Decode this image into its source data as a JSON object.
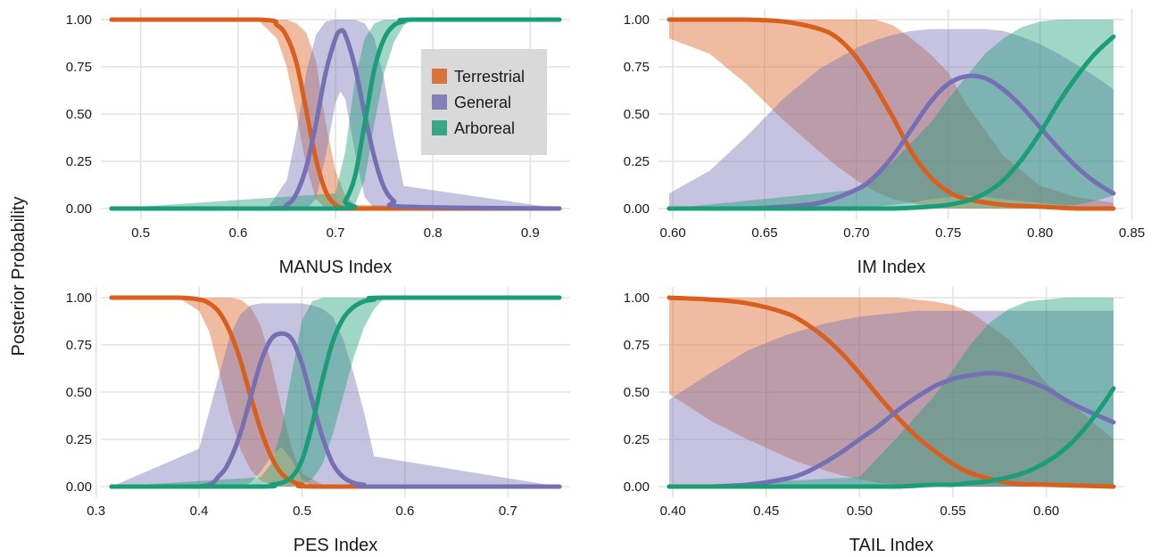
{
  "figure": {
    "ylabel": "Posterior Probability",
    "colors": {
      "Terrestrial": "#d95f1e",
      "General": "#7570b3",
      "Arboreal": "#1b9e77"
    },
    "legend": {
      "placement": "inside top-right of first panel",
      "entries": [
        "Terrestrial",
        "General",
        "Arboreal"
      ]
    }
  },
  "chart_data": [
    {
      "type": "line",
      "xlabel": "MANUS Index",
      "ylabel": "Posterior Probability",
      "xlim": [
        0.47,
        0.93
      ],
      "ylim": [
        0,
        1
      ],
      "xticks": [
        0.5,
        0.6,
        0.7,
        0.8,
        0.9
      ],
      "xtick_labels": [
        "0.5",
        "0.6",
        "0.7",
        "0.8",
        "0.9"
      ],
      "yticks": [
        0,
        0.25,
        0.5,
        0.75,
        1
      ],
      "ytick_labels": [
        "0.00",
        "0.25",
        "0.50",
        "0.75",
        "1.00"
      ],
      "grid": true,
      "series": [
        {
          "name": "Terrestrial",
          "x": [
            0.47,
            0.62,
            0.64,
            0.65,
            0.66,
            0.67,
            0.68,
            0.69,
            0.7,
            0.71,
            0.72,
            0.93
          ],
          "y": [
            1.0,
            1.0,
            0.97,
            0.91,
            0.77,
            0.52,
            0.26,
            0.09,
            0.02,
            0.0,
            0.0,
            0.0
          ],
          "lower": [
            1.0,
            1.0,
            0.9,
            0.75,
            0.5,
            0.22,
            0.05,
            0.0,
            0.0,
            0.0,
            0.0,
            0.0
          ],
          "upper": [
            1.0,
            1.0,
            1.0,
            1.0,
            0.98,
            0.93,
            0.78,
            0.45,
            0.2,
            0.07,
            0.02,
            0.0
          ]
        },
        {
          "name": "General",
          "x": [
            0.47,
            0.63,
            0.65,
            0.66,
            0.67,
            0.68,
            0.69,
            0.7,
            0.705,
            0.71,
            0.72,
            0.73,
            0.74,
            0.75,
            0.76,
            0.77,
            0.93
          ],
          "y": [
            0.0,
            0.0,
            0.02,
            0.08,
            0.22,
            0.45,
            0.72,
            0.9,
            0.94,
            0.92,
            0.75,
            0.5,
            0.27,
            0.11,
            0.04,
            0.01,
            0.0
          ],
          "lower": [
            0.0,
            0.0,
            0.0,
            0.0,
            0.0,
            0.05,
            0.28,
            0.56,
            0.62,
            0.58,
            0.3,
            0.06,
            0.0,
            0.0,
            0.0,
            0.0,
            0.0
          ],
          "upper": [
            0.0,
            0.0,
            0.15,
            0.4,
            0.72,
            0.92,
            0.99,
            1.0,
            1.0,
            1.0,
            1.0,
            0.98,
            0.9,
            0.68,
            0.38,
            0.12,
            0.0
          ]
        },
        {
          "name": "Arboreal",
          "x": [
            0.47,
            0.7,
            0.71,
            0.72,
            0.73,
            0.74,
            0.75,
            0.76,
            0.77,
            0.78,
            0.93
          ],
          "y": [
            0.0,
            0.0,
            0.04,
            0.17,
            0.45,
            0.74,
            0.9,
            0.97,
            0.99,
            1.0,
            1.0
          ],
          "lower": [
            0.0,
            0.0,
            0.0,
            0.02,
            0.15,
            0.45,
            0.72,
            0.88,
            0.97,
            1.0,
            1.0
          ],
          "upper": [
            0.0,
            0.08,
            0.3,
            0.68,
            0.9,
            0.98,
            1.0,
            1.0,
            1.0,
            1.0,
            1.0
          ]
        }
      ]
    },
    {
      "type": "line",
      "xlabel": "IM Index",
      "ylabel": "Posterior Probability",
      "xlim": [
        0.598,
        0.84
      ],
      "ylim": [
        0,
        1
      ],
      "xticks": [
        0.6,
        0.65,
        0.7,
        0.75,
        0.8,
        0.85
      ],
      "xtick_labels": [
        "0.60",
        "0.65",
        "0.70",
        "0.75",
        "0.80",
        "0.85"
      ],
      "yticks": [
        0,
        0.25,
        0.5,
        0.75,
        1
      ],
      "ytick_labels": [
        "0.00",
        "0.25",
        "0.50",
        "0.75",
        "1.00"
      ],
      "grid": true,
      "series": [
        {
          "name": "Terrestrial",
          "x": [
            0.598,
            0.62,
            0.64,
            0.66,
            0.68,
            0.69,
            0.7,
            0.71,
            0.72,
            0.73,
            0.74,
            0.75,
            0.76,
            0.78,
            0.8,
            0.82,
            0.84
          ],
          "y": [
            1.0,
            1.0,
            1.0,
            0.99,
            0.95,
            0.9,
            0.8,
            0.65,
            0.48,
            0.3,
            0.17,
            0.09,
            0.05,
            0.02,
            0.01,
            0.0,
            0.0
          ],
          "lower": [
            0.9,
            0.82,
            0.66,
            0.47,
            0.3,
            0.22,
            0.15,
            0.09,
            0.05,
            0.03,
            0.01,
            0.0,
            0.0,
            0.0,
            0.0,
            0.0,
            0.0
          ],
          "upper": [
            1.0,
            1.0,
            1.0,
            1.0,
            1.0,
            1.0,
            1.0,
            1.0,
            0.97,
            0.9,
            0.82,
            0.72,
            0.55,
            0.28,
            0.12,
            0.06,
            0.03
          ]
        },
        {
          "name": "General",
          "x": [
            0.598,
            0.62,
            0.64,
            0.66,
            0.68,
            0.7,
            0.71,
            0.72,
            0.73,
            0.74,
            0.75,
            0.76,
            0.77,
            0.78,
            0.79,
            0.8,
            0.81,
            0.82,
            0.83,
            0.84
          ],
          "y": [
            0.0,
            0.0,
            0.0,
            0.01,
            0.03,
            0.1,
            0.17,
            0.28,
            0.42,
            0.56,
            0.66,
            0.7,
            0.69,
            0.63,
            0.54,
            0.43,
            0.32,
            0.22,
            0.14,
            0.08
          ],
          "lower": [
            0.0,
            0.0,
            0.0,
            0.0,
            0.0,
            0.0,
            0.01,
            0.02,
            0.03,
            0.05,
            0.06,
            0.07,
            0.06,
            0.05,
            0.04,
            0.03,
            0.02,
            0.01,
            0.01,
            0.0
          ],
          "upper": [
            0.08,
            0.2,
            0.38,
            0.58,
            0.74,
            0.85,
            0.89,
            0.92,
            0.94,
            0.95,
            0.95,
            0.95,
            0.95,
            0.94,
            0.91,
            0.87,
            0.82,
            0.76,
            0.7,
            0.63
          ]
        },
        {
          "name": "Arboreal",
          "x": [
            0.598,
            0.7,
            0.72,
            0.74,
            0.75,
            0.76,
            0.77,
            0.78,
            0.79,
            0.8,
            0.81,
            0.82,
            0.83,
            0.84
          ],
          "y": [
            0.0,
            0.0,
            0.0,
            0.01,
            0.02,
            0.04,
            0.08,
            0.15,
            0.26,
            0.4,
            0.56,
            0.7,
            0.82,
            0.91
          ],
          "lower": [
            0.0,
            0.0,
            0.0,
            0.0,
            0.0,
            0.0,
            0.0,
            0.0,
            0.0,
            0.0,
            0.01,
            0.02,
            0.04,
            0.07
          ],
          "upper": [
            0.0,
            0.1,
            0.25,
            0.45,
            0.58,
            0.7,
            0.82,
            0.9,
            0.96,
            0.99,
            1.0,
            1.0,
            1.0,
            1.0
          ]
        }
      ]
    },
    {
      "type": "line",
      "xlabel": "PES Index",
      "ylabel": "Posterior Probability",
      "xlim": [
        0.315,
        0.75
      ],
      "ylim": [
        0,
        1
      ],
      "xticks": [
        0.3,
        0.4,
        0.5,
        0.6,
        0.7
      ],
      "xtick_labels": [
        "0.3",
        "0.4",
        "0.5",
        "0.6",
        "0.7"
      ],
      "yticks": [
        0,
        0.25,
        0.5,
        0.75,
        1
      ],
      "ytick_labels": [
        "0.00",
        "0.25",
        "0.50",
        "0.75",
        "1.00"
      ],
      "grid": true,
      "series": [
        {
          "name": "Terrestrial",
          "x": [
            0.315,
            0.38,
            0.4,
            0.41,
            0.42,
            0.43,
            0.44,
            0.45,
            0.46,
            0.47,
            0.48,
            0.49,
            0.5,
            0.52,
            0.75
          ],
          "y": [
            1.0,
            1.0,
            0.99,
            0.97,
            0.92,
            0.82,
            0.67,
            0.48,
            0.3,
            0.16,
            0.07,
            0.03,
            0.01,
            0.0,
            0.0
          ],
          "lower": [
            1.0,
            1.0,
            0.93,
            0.82,
            0.6,
            0.38,
            0.2,
            0.09,
            0.03,
            0.01,
            0.0,
            0.0,
            0.0,
            0.0,
            0.0
          ],
          "upper": [
            1.0,
            1.0,
            1.0,
            1.0,
            1.0,
            1.0,
            0.99,
            0.95,
            0.85,
            0.66,
            0.42,
            0.2,
            0.07,
            0.01,
            0.0
          ]
        },
        {
          "name": "General",
          "x": [
            0.315,
            0.4,
            0.42,
            0.43,
            0.44,
            0.45,
            0.46,
            0.47,
            0.48,
            0.49,
            0.5,
            0.51,
            0.52,
            0.53,
            0.54,
            0.55,
            0.56,
            0.57,
            0.75
          ],
          "y": [
            0.0,
            0.0,
            0.06,
            0.14,
            0.28,
            0.47,
            0.66,
            0.78,
            0.81,
            0.78,
            0.65,
            0.45,
            0.26,
            0.12,
            0.05,
            0.02,
            0.01,
            0.0,
            0.0
          ],
          "lower": [
            0.0,
            0.0,
            0.0,
            0.0,
            0.0,
            0.02,
            0.08,
            0.16,
            0.21,
            0.14,
            0.04,
            0.0,
            0.0,
            0.0,
            0.0,
            0.0,
            0.0,
            0.0,
            0.0
          ],
          "upper": [
            0.0,
            0.2,
            0.6,
            0.8,
            0.91,
            0.96,
            0.97,
            0.97,
            0.97,
            0.97,
            0.97,
            0.96,
            0.94,
            0.9,
            0.78,
            0.6,
            0.4,
            0.16,
            0.0
          ]
        },
        {
          "name": "Arboreal",
          "x": [
            0.315,
            0.46,
            0.47,
            0.48,
            0.49,
            0.5,
            0.51,
            0.52,
            0.53,
            0.54,
            0.55,
            0.56,
            0.57,
            0.58,
            0.75
          ],
          "y": [
            0.0,
            0.0,
            0.01,
            0.02,
            0.05,
            0.14,
            0.33,
            0.57,
            0.77,
            0.89,
            0.95,
            0.98,
            0.99,
            1.0,
            1.0
          ],
          "lower": [
            0.0,
            0.0,
            0.0,
            0.0,
            0.0,
            0.01,
            0.04,
            0.12,
            0.28,
            0.48,
            0.68,
            0.84,
            0.94,
            1.0,
            1.0
          ],
          "upper": [
            0.0,
            0.05,
            0.12,
            0.3,
            0.6,
            0.88,
            0.98,
            1.0,
            1.0,
            1.0,
            1.0,
            1.0,
            1.0,
            1.0,
            1.0
          ]
        }
      ]
    },
    {
      "type": "line",
      "xlabel": "TAIL Index",
      "ylabel": "Posterior Probability",
      "xlim": [
        0.398,
        0.636
      ],
      "ylim": [
        0,
        1
      ],
      "xticks": [
        0.4,
        0.45,
        0.5,
        0.55,
        0.6
      ],
      "xtick_labels": [
        "0.40",
        "0.45",
        "0.50",
        "0.55",
        "0.60"
      ],
      "yticks": [
        0,
        0.25,
        0.5,
        0.75,
        1
      ],
      "ytick_labels": [
        "0.00",
        "0.25",
        "0.50",
        "0.75",
        "1.00"
      ],
      "grid": true,
      "series": [
        {
          "name": "Terrestrial",
          "x": [
            0.398,
            0.42,
            0.44,
            0.46,
            0.47,
            0.48,
            0.49,
            0.5,
            0.51,
            0.52,
            0.53,
            0.54,
            0.55,
            0.56,
            0.58,
            0.6,
            0.636
          ],
          "y": [
            1.0,
            0.99,
            0.97,
            0.92,
            0.87,
            0.8,
            0.71,
            0.6,
            0.48,
            0.37,
            0.27,
            0.19,
            0.12,
            0.07,
            0.02,
            0.01,
            0.0
          ],
          "lower": [
            0.49,
            0.35,
            0.25,
            0.16,
            0.12,
            0.09,
            0.06,
            0.04,
            0.02,
            0.01,
            0.0,
            0.0,
            0.0,
            0.0,
            0.0,
            0.0,
            0.0
          ],
          "upper": [
            1.0,
            1.0,
            1.0,
            1.0,
            1.0,
            1.0,
            1.0,
            1.0,
            1.0,
            1.0,
            0.99,
            0.98,
            0.96,
            0.92,
            0.78,
            0.55,
            0.25
          ]
        },
        {
          "name": "General",
          "x": [
            0.398,
            0.42,
            0.44,
            0.46,
            0.47,
            0.48,
            0.49,
            0.5,
            0.51,
            0.52,
            0.53,
            0.54,
            0.55,
            0.56,
            0.57,
            0.58,
            0.59,
            0.6,
            0.61,
            0.62,
            0.636
          ],
          "y": [
            0.0,
            0.0,
            0.01,
            0.04,
            0.07,
            0.12,
            0.18,
            0.25,
            0.32,
            0.4,
            0.47,
            0.53,
            0.57,
            0.59,
            0.6,
            0.59,
            0.56,
            0.52,
            0.46,
            0.41,
            0.34
          ],
          "lower": [
            0.0,
            0.0,
            0.0,
            0.0,
            0.0,
            0.0,
            0.0,
            0.0,
            0.0,
            0.0,
            0.0,
            0.0,
            0.0,
            0.0,
            0.0,
            0.0,
            0.0,
            0.0,
            0.0,
            0.0,
            0.0
          ],
          "upper": [
            0.46,
            0.6,
            0.72,
            0.8,
            0.83,
            0.86,
            0.88,
            0.9,
            0.91,
            0.92,
            0.93,
            0.93,
            0.93,
            0.93,
            0.93,
            0.93,
            0.93,
            0.93,
            0.93,
            0.93,
            0.93
          ]
        },
        {
          "name": "Arboreal",
          "x": [
            0.398,
            0.5,
            0.52,
            0.54,
            0.55,
            0.56,
            0.57,
            0.58,
            0.59,
            0.6,
            0.61,
            0.62,
            0.63,
            0.636
          ],
          "y": [
            0.0,
            0.0,
            0.0,
            0.01,
            0.01,
            0.02,
            0.03,
            0.05,
            0.08,
            0.13,
            0.2,
            0.3,
            0.43,
            0.52
          ],
          "lower": [
            0.0,
            0.0,
            0.0,
            0.0,
            0.0,
            0.0,
            0.0,
            0.0,
            0.0,
            0.0,
            0.0,
            0.0,
            0.0,
            0.0
          ],
          "upper": [
            0.0,
            0.05,
            0.26,
            0.48,
            0.62,
            0.76,
            0.87,
            0.94,
            0.98,
            0.99,
            1.0,
            1.0,
            1.0,
            1.0
          ]
        }
      ]
    }
  ]
}
